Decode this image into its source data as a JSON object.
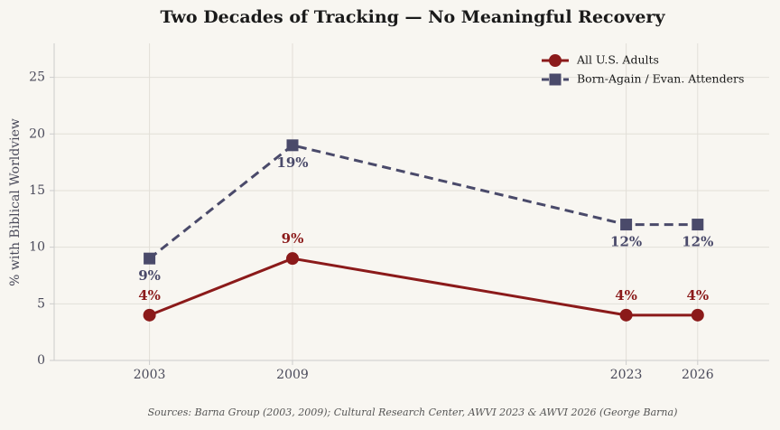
{
  "chart_data": {
    "type": "line",
    "title": "Two Decades of Tracking — No Meaningful Recovery",
    "y_label": "% with Biblical Worldview",
    "source": "Sources: Barna Group (2003, 2009); Cultural Research Center, AWVI 2023 & AWVI 2026 (George Barna)",
    "x": [
      2003,
      2009,
      2023,
      2026
    ],
    "xlim": [
      1999,
      2029
    ],
    "xticks": [
      2003,
      2009,
      2023,
      2026
    ],
    "ylim": [
      0,
      28
    ],
    "yticks": [
      0,
      5,
      10,
      15,
      20,
      25
    ],
    "grid": true,
    "legend": "upper right",
    "series": [
      {
        "name": "All U.S. Adults",
        "color": "#8b1a1a",
        "marker": "circle",
        "linestyle": "solid",
        "label_position": "above",
        "values": [
          4,
          9,
          4,
          4
        ],
        "value_labels": [
          "4%",
          "9%",
          "4%",
          "4%"
        ]
      },
      {
        "name": "Born-Again / Evan. Attenders",
        "color": "#4a4a6a",
        "marker": "square",
        "linestyle": "dashed",
        "label_position": "below",
        "values": [
          9,
          19,
          12,
          12
        ],
        "value_labels": [
          "9%",
          "19%",
          "12%",
          "12%"
        ]
      }
    ]
  }
}
